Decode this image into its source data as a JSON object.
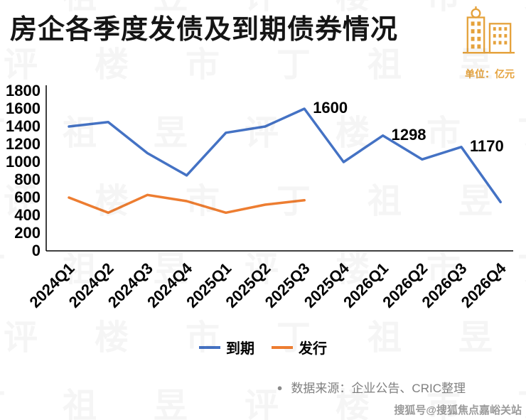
{
  "header": {
    "title": "房企各季度发债及到期债券情况",
    "unit_label": "单位：亿元"
  },
  "chart_data": {
    "type": "line",
    "categories": [
      "2024Q1",
      "2024Q2",
      "2024Q3",
      "2024Q4",
      "2025Q1",
      "2025Q2",
      "2025Q3",
      "2025Q4",
      "2026Q1",
      "2026Q2",
      "2026Q3",
      "2026Q4"
    ],
    "series": [
      {
        "name": "到期",
        "color": "#4472C4",
        "values": [
          1400,
          1450,
          1100,
          850,
          1330,
          1400,
          1600,
          1000,
          1298,
          1030,
          1170,
          550
        ]
      },
      {
        "name": "发行",
        "color": "#ED7D31",
        "values": [
          600,
          430,
          630,
          560,
          430,
          520,
          570
        ]
      }
    ],
    "point_labels": [
      {
        "series": 0,
        "index": 6,
        "text": "1600"
      },
      {
        "series": 0,
        "index": 8,
        "text": "1298"
      },
      {
        "series": 0,
        "index": 10,
        "text": "1170"
      }
    ],
    "ylim": [
      0,
      1800
    ],
    "ytick_step": 200,
    "grid": false,
    "legend_position": "bottom"
  },
  "footer": {
    "bullet": "●",
    "source_text": "数据来源：企业公告、CRIC整理",
    "sohu_watermark": "搜狐号@搜狐焦点嘉峪关站"
  },
  "watermark": {
    "chars": [
      "丁",
      "祖",
      "昱",
      "评",
      "楼",
      "市"
    ]
  },
  "icon_color": "#E5A23C"
}
